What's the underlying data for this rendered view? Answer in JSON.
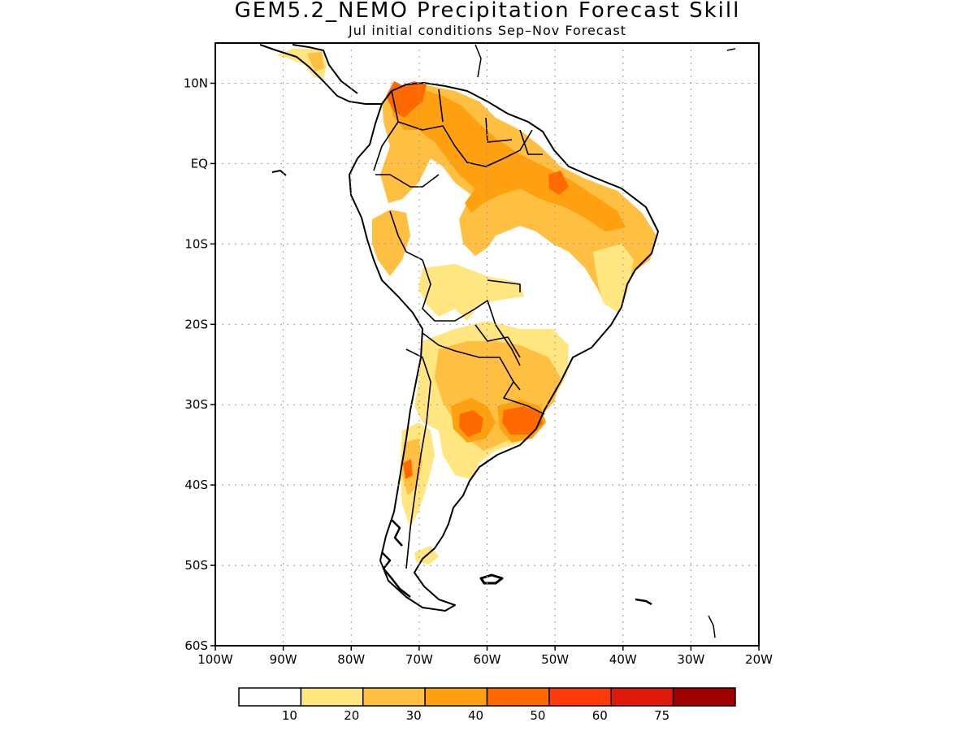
{
  "title": "GEM5.2_NEMO Precipitation Forecast Skill",
  "subtitle": "Jul initial conditions   Sep–Nov Forecast",
  "map": {
    "lon_range": [
      -100,
      -20
    ],
    "lat_range": [
      -60,
      15
    ],
    "lat_ticks": [
      {
        "value": 10,
        "label": "10N"
      },
      {
        "value": 0,
        "label": "EQ"
      },
      {
        "value": -10,
        "label": "10S"
      },
      {
        "value": -20,
        "label": "20S"
      },
      {
        "value": -30,
        "label": "30S"
      },
      {
        "value": -40,
        "label": "40S"
      },
      {
        "value": -50,
        "label": "50S"
      },
      {
        "value": -60,
        "label": "60S"
      }
    ],
    "lon_ticks": [
      {
        "value": -100,
        "label": "100W"
      },
      {
        "value": -90,
        "label": "90W"
      },
      {
        "value": -80,
        "label": "80W"
      },
      {
        "value": -70,
        "label": "70W"
      },
      {
        "value": -60,
        "label": "60W"
      },
      {
        "value": -50,
        "label": "50W"
      },
      {
        "value": -40,
        "label": "40W"
      },
      {
        "value": -30,
        "label": "30W"
      },
      {
        "value": -20,
        "label": "20W"
      }
    ],
    "grid": "dotted"
  },
  "colorbar": {
    "levels": [
      "10",
      "20",
      "30",
      "40",
      "50",
      "60",
      "75"
    ],
    "colors": [
      "#ffffff",
      "#ffe680",
      "#ffbf40",
      "#ffa010",
      "#ff6a00",
      "#ff3a0a",
      "#e01a0a",
      "#a00000"
    ]
  }
}
